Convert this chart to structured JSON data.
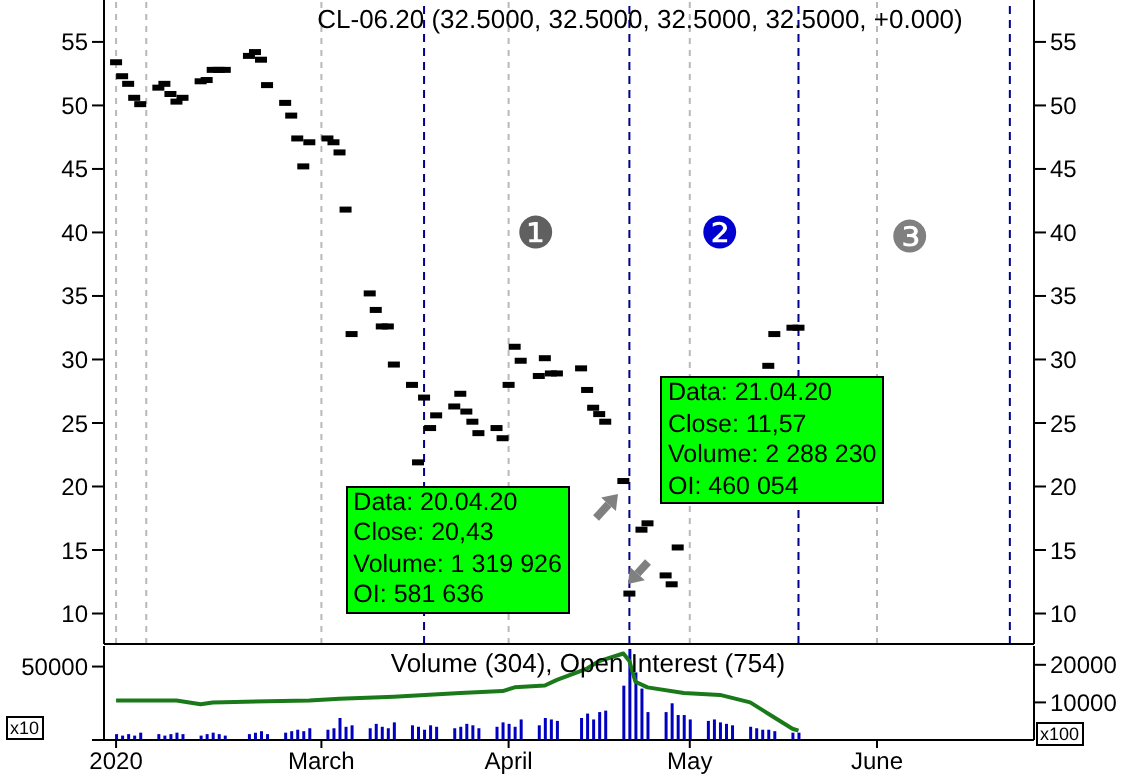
{
  "chart_data": [
    {
      "type": "scatter",
      "title": "CL-06.20 (32.5000, 32.5000, 32.5000, 32.5000, +0.000)",
      "x": [
        "2020-01-27",
        "2020-01-28",
        "2020-01-29",
        "2020-01-30",
        "2020-01-31",
        "2020-02-03",
        "2020-02-04",
        "2020-02-05",
        "2020-02-06",
        "2020-02-07",
        "2020-02-10",
        "2020-02-11",
        "2020-02-12",
        "2020-02-13",
        "2020-02-14",
        "2020-02-18",
        "2020-02-19",
        "2020-02-20",
        "2020-02-21",
        "2020-02-24",
        "2020-02-25",
        "2020-02-26",
        "2020-02-27",
        "2020-02-28",
        "2020-03-02",
        "2020-03-03",
        "2020-03-04",
        "2020-03-05",
        "2020-03-06",
        "2020-03-09",
        "2020-03-10",
        "2020-03-11",
        "2020-03-12",
        "2020-03-13",
        "2020-03-16",
        "2020-03-17",
        "2020-03-18",
        "2020-03-19",
        "2020-03-20",
        "2020-03-23",
        "2020-03-24",
        "2020-03-25",
        "2020-03-26",
        "2020-03-27",
        "2020-03-30",
        "2020-03-31",
        "2020-04-01",
        "2020-04-02",
        "2020-04-03",
        "2020-04-06",
        "2020-04-07",
        "2020-04-08",
        "2020-04-09",
        "2020-04-13",
        "2020-04-14",
        "2020-04-15",
        "2020-04-16",
        "2020-04-17",
        "2020-04-20",
        "2020-04-21",
        "2020-04-22",
        "2020-04-23",
        "2020-04-24",
        "2020-04-27",
        "2020-04-28",
        "2020-04-29",
        "2020-04-30",
        "2020-05-01",
        "2020-05-04",
        "2020-05-05",
        "2020-05-06",
        "2020-05-07",
        "2020-05-08",
        "2020-05-11",
        "2020-05-12",
        "2020-05-13",
        "2020-05-14",
        "2020-05-15",
        "2020-05-18",
        "2020-05-19"
      ],
      "series": [
        {
          "color": "#000000",
          "values": [
            53.4,
            52.3,
            51.7,
            50.6,
            50.1,
            51.4,
            51.7,
            50.9,
            50.3,
            50.6,
            51.9,
            52.0,
            52.8,
            52.8,
            52.8,
            53.9,
            54.2,
            53.6,
            51.6,
            50.2,
            49.2,
            47.4,
            45.2,
            47.1,
            47.4,
            47.1,
            46.3,
            41.8,
            32.0,
            35.2,
            33.9,
            32.6,
            32.6,
            29.6,
            28.0,
            21.9,
            27.0,
            24.6,
            25.6,
            26.3,
            27.3,
            25.9,
            25.1,
            24.2,
            24.6,
            23.8,
            28.0,
            31.0,
            29.9,
            28.7,
            30.1,
            28.9,
            28.9,
            29.3,
            27.6,
            26.2,
            25.7,
            25.1,
            20.43,
            11.57,
            null,
            16.6,
            17.1,
            13.0,
            12.3,
            15.2,
            null,
            null,
            null,
            null,
            null,
            null,
            null,
            null,
            null,
            null,
            29.5,
            32.0,
            32.5,
            32.5
          ]
        }
      ],
      "xlim": [
        "2020-01-25",
        "2020-06-27"
      ],
      "xticks": [
        {
          "value": "2020-01-27",
          "label": null
        },
        {
          "value": "2020-02-01",
          "label": null
        },
        {
          "value": "2020-03-01",
          "label": null
        },
        {
          "value": "2020-04-01",
          "label": null
        },
        {
          "value": "2020-05-01",
          "label": null
        },
        {
          "value": "2020-06-01",
          "label": null
        }
      ],
      "ylim": [
        7.6,
        58.3
      ],
      "yticks": [
        10,
        15,
        20,
        25,
        30,
        35,
        40,
        45,
        50,
        55
      ],
      "y2lim": [
        7.6,
        58.3
      ],
      "y2ticks": [
        10,
        15,
        20,
        25,
        30,
        35,
        40,
        45,
        50,
        55
      ],
      "tick_labels": "y",
      "grid": "x",
      "ref_lines": [
        {
          "axis": "x",
          "value": "2020-03-18",
          "color": "#00008b",
          "line_style": "dashed"
        },
        {
          "axis": "x",
          "value": "2020-04-21",
          "color": "#00008b",
          "line_style": "dashed"
        },
        {
          "axis": "x",
          "value": "2020-05-19",
          "color": "#00008b",
          "line_style": "dashed"
        },
        {
          "axis": "x",
          "value": "2020-06-23",
          "color": "#00008b",
          "line_style": "dashed"
        }
      ],
      "annotations": [
        "❶",
        "❷",
        "❸",
        {
          "text": "Data: 20.04.20\nClose: 20,43\nVolume: 1 319 926\nOI: 581 636",
          "x": "2020-04-20",
          "y": 20.43
        },
        "Data: 21.04.20\nClose: 11,57\nVolume: 2 288 230\nOI: 460 054"
      ]
    },
    {
      "type": "bar",
      "title": "Volume (304), Open Interest (754)",
      "x": [
        "2020-01-27",
        "2020-01-28",
        "2020-01-29",
        "2020-01-30",
        "2020-01-31",
        "2020-02-03",
        "2020-02-04",
        "2020-02-05",
        "2020-02-06",
        "2020-02-07",
        "2020-02-10",
        "2020-02-11",
        "2020-02-12",
        "2020-02-13",
        "2020-02-14",
        "2020-02-18",
        "2020-02-19",
        "2020-02-20",
        "2020-02-21",
        "2020-02-24",
        "2020-02-25",
        "2020-02-26",
        "2020-02-27",
        "2020-02-28",
        "2020-03-02",
        "2020-03-03",
        "2020-03-04",
        "2020-03-05",
        "2020-03-06",
        "2020-03-09",
        "2020-03-10",
        "2020-03-11",
        "2020-03-12",
        "2020-03-13",
        "2020-03-16",
        "2020-03-17",
        "2020-03-18",
        "2020-03-19",
        "2020-03-20",
        "2020-03-23",
        "2020-03-24",
        "2020-03-25",
        "2020-03-26",
        "2020-03-27",
        "2020-03-30",
        "2020-03-31",
        "2020-04-01",
        "2020-04-02",
        "2020-04-03",
        "2020-04-06",
        "2020-04-07",
        "2020-04-08",
        "2020-04-09",
        "2020-04-13",
        "2020-04-14",
        "2020-04-15",
        "2020-04-16",
        "2020-04-17",
        "2020-04-20",
        "2020-04-21",
        "2020-04-22",
        "2020-04-23",
        "2020-04-24",
        "2020-04-27",
        "2020-04-28",
        "2020-04-29",
        "2020-04-30",
        "2020-05-01",
        "2020-05-04",
        "2020-05-05",
        "2020-05-06",
        "2020-05-07",
        "2020-05-08",
        "2020-05-11",
        "2020-05-12",
        "2020-05-13",
        "2020-05-14",
        "2020-05-15",
        "2020-05-18",
        "2020-05-19"
      ],
      "series": [
        {
          "color": "#0000c0",
          "values": [
            4000,
            3000,
            4000,
            3000,
            5000,
            4000,
            3000,
            4000,
            5000,
            4000,
            3000,
            4000,
            5000,
            4000,
            3000,
            4000,
            5000,
            6000,
            4000,
            5000,
            6000,
            7000,
            6000,
            8000,
            7000,
            8000,
            15000,
            9000,
            10000,
            8000,
            11000,
            9000,
            8000,
            12000,
            10000,
            9000,
            7000,
            10000,
            9000,
            8000,
            9000,
            11000,
            10000,
            8000,
            9000,
            12000,
            11000,
            9000,
            14000,
            10000,
            15000,
            14000,
            13000,
            15000,
            18000,
            14000,
            19000,
            20000,
            37000,
            62000,
            46000,
            35000,
            19000,
            19000,
            25000,
            17000,
            17000,
            14000,
            13000,
            14000,
            12000,
            11000,
            10000,
            9000,
            8000,
            7000,
            7000,
            6000,
            5000,
            5000
          ]
        },
        {
          "type": "line",
          "axis": "y2",
          "color": "#1a7a1a",
          "x": [
            "2020-01-27",
            "2020-02-06",
            "2020-02-10",
            "2020-02-12",
            "2020-02-28",
            "2020-03-04",
            "2020-03-13",
            "2020-03-24",
            "2020-03-31",
            "2020-04-02",
            "2020-04-07",
            "2020-04-09",
            "2020-04-14",
            "2020-04-16",
            "2020-04-20",
            "2020-04-21",
            "2020-04-22",
            "2020-04-24",
            "2020-04-30",
            "2020-05-06",
            "2020-05-11",
            "2020-05-14",
            "2020-05-18",
            "2020-05-19"
          ],
          "values": [
            10500,
            10500,
            9500,
            10000,
            10500,
            11000,
            11500,
            12500,
            13000,
            14000,
            14500,
            16000,
            19000,
            21000,
            23000,
            21000,
            15500,
            14000,
            12500,
            12000,
            10000,
            7000,
            3000,
            2500
          ]
        }
      ],
      "xlim": [
        "2020-01-25",
        "2020-06-27"
      ],
      "xticks": [
        {
          "value": "2020-01-27",
          "label": "2020"
        },
        {
          "value": "2020-03-01",
          "label": "March"
        },
        {
          "value": "2020-04-01",
          "label": "April"
        },
        {
          "value": "2020-05-01",
          "label": "May"
        },
        {
          "value": "2020-06-01",
          "label": "June"
        }
      ],
      "ylim": [
        0,
        64000
      ],
      "yticks": [
        {
          "value": 0,
          "label": null
        },
        50000
      ],
      "y2lim": [
        0,
        25000
      ],
      "y2ticks": [
        10000,
        20000
      ],
      "annotations": [
        "x10",
        "x100"
      ]
    }
  ]
}
